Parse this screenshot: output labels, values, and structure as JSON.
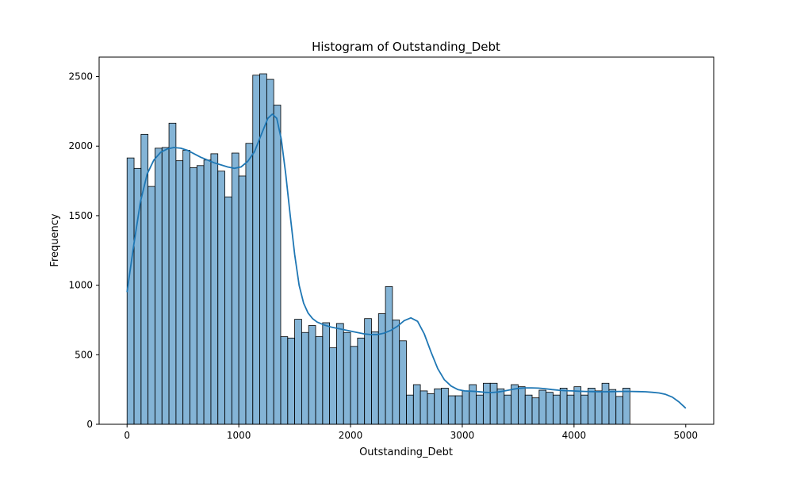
{
  "chart_data": {
    "type": "bar",
    "title": "Histogram of Outstanding_Debt",
    "xlabel": "Outstanding_Debt",
    "ylabel": "Frequency",
    "xlim": [
      -250,
      5250
    ],
    "ylim": [
      0,
      2640
    ],
    "xticks": [
      0,
      1000,
      2000,
      3000,
      4000,
      5000
    ],
    "yticks": [
      0,
      500,
      1000,
      1500,
      2000,
      2500
    ],
    "bin_start": 0,
    "bin_width": 62.5,
    "bar_color": "#1f77b4",
    "bar_alpha": 0.55,
    "kde_color": "#1f77b4",
    "values": [
      1915,
      1840,
      2085,
      1710,
      1985,
      1990,
      2165,
      1895,
      1970,
      1845,
      1860,
      1900,
      1945,
      1820,
      1635,
      1950,
      1785,
      2020,
      2510,
      2520,
      2480,
      2295,
      630,
      620,
      755,
      660,
      710,
      630,
      730,
      550,
      725,
      660,
      560,
      620,
      760,
      665,
      795,
      990,
      750,
      600,
      210,
      285,
      240,
      220,
      255,
      260,
      205,
      205,
      240,
      285,
      210,
      295,
      295,
      255,
      210,
      285,
      270,
      210,
      190,
      245,
      230,
      210,
      260,
      210,
      270,
      210,
      260,
      240,
      295,
      250,
      200,
      260
    ],
    "kde": {
      "x": [
        0,
        60,
        120,
        180,
        240,
        300,
        360,
        420,
        480,
        540,
        600,
        660,
        720,
        780,
        840,
        900,
        960,
        1020,
        1080,
        1140,
        1200,
        1260,
        1300,
        1340,
        1380,
        1420,
        1460,
        1500,
        1540,
        1580,
        1620,
        1660,
        1700,
        1760,
        1820,
        1880,
        1940,
        2000,
        2060,
        2120,
        2180,
        2240,
        2300,
        2360,
        2420,
        2480,
        2540,
        2600,
        2660,
        2720,
        2780,
        2840,
        2900,
        2960,
        3020,
        3080,
        3140,
        3200,
        3260,
        3320,
        3380,
        3440,
        3500,
        3560,
        3620,
        3680,
        3740,
        3800,
        3860,
        3920,
        3980,
        4040,
        4100,
        4160,
        4220,
        4280,
        4340,
        4400,
        4460,
        4520,
        4580,
        4640,
        4700,
        4760,
        4820,
        4880,
        4940,
        5000
      ],
      "y": [
        950,
        1290,
        1600,
        1800,
        1900,
        1955,
        1980,
        1990,
        1985,
        1970,
        1945,
        1920,
        1900,
        1880,
        1865,
        1850,
        1840,
        1850,
        1890,
        1960,
        2080,
        2200,
        2230,
        2200,
        2050,
        1800,
        1500,
        1220,
        1000,
        870,
        800,
        760,
        735,
        715,
        700,
        690,
        680,
        670,
        660,
        650,
        645,
        645,
        655,
        675,
        705,
        745,
        765,
        740,
        650,
        520,
        400,
        320,
        275,
        250,
        240,
        238,
        235,
        230,
        228,
        232,
        240,
        250,
        258,
        262,
        262,
        260,
        256,
        250,
        245,
        242,
        240,
        238,
        236,
        235,
        234,
        234,
        235,
        236,
        236,
        236,
        235,
        234,
        230,
        225,
        215,
        195,
        160,
        115
      ]
    }
  }
}
